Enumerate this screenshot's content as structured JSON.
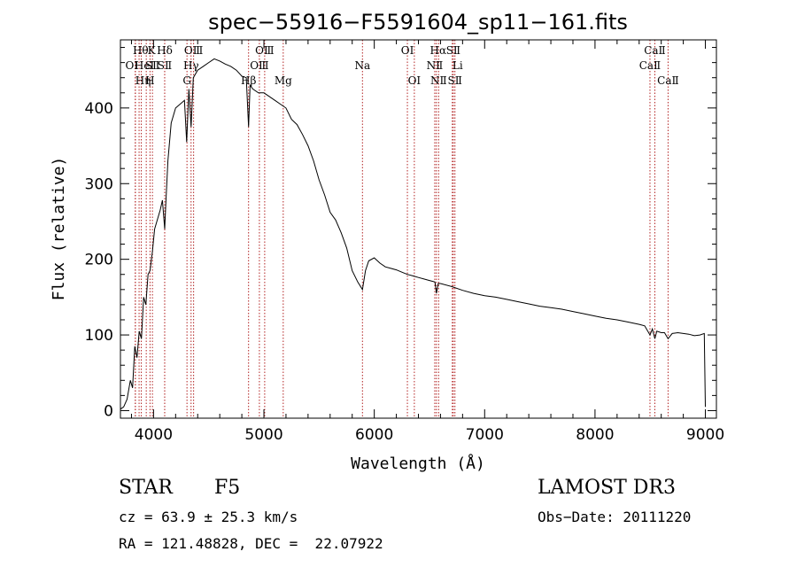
{
  "chart_data": {
    "type": "line",
    "title": "spec−55916−F5591604_sp11−161.fits",
    "xlabel": "Wavelength (Å)",
    "ylabel": "Flux (relative)",
    "xlim": [
      3700,
      9100
    ],
    "ylim": [
      -10,
      490
    ],
    "x_ticks": [
      4000,
      5000,
      6000,
      7000,
      8000,
      9000
    ],
    "y_ticks": [
      0,
      100,
      200,
      300,
      400
    ],
    "colors": {
      "spectrum": "#000000",
      "lines": "#b22222",
      "axes": "#000000"
    },
    "series": [
      {
        "name": "spectrum",
        "x": [
          3700,
          3730,
          3760,
          3790,
          3810,
          3830,
          3850,
          3870,
          3890,
          3910,
          3930,
          3950,
          3968,
          3990,
          4010,
          4030,
          4060,
          4080,
          4101,
          4110,
          4130,
          4160,
          4200,
          4240,
          4280,
          4300,
          4320,
          4340,
          4360,
          4400,
          4450,
          4500,
          4550,
          4600,
          4650,
          4700,
          4750,
          4800,
          4840,
          4861,
          4875,
          4900,
          4950,
          5000,
          5050,
          5100,
          5150,
          5200,
          5250,
          5300,
          5350,
          5400,
          5450,
          5500,
          5550,
          5600,
          5650,
          5700,
          5750,
          5800,
          5850,
          5893,
          5920,
          5950,
          6000,
          6050,
          6100,
          6150,
          6200,
          6250,
          6300,
          6350,
          6400,
          6450,
          6500,
          6550,
          6563,
          6580,
          6600,
          6700,
          6800,
          6900,
          7000,
          7100,
          7200,
          7300,
          7400,
          7500,
          7600,
          7700,
          7800,
          7900,
          8000,
          8100,
          8200,
          8300,
          8400,
          8450,
          8498,
          8520,
          8542,
          8560,
          8600,
          8630,
          8662,
          8700,
          8750,
          8800,
          8850,
          8900,
          8950,
          8990,
          9000
        ],
        "y": [
          2,
          5,
          15,
          40,
          30,
          85,
          70,
          105,
          95,
          150,
          140,
          180,
          185,
          210,
          240,
          250,
          265,
          278,
          240,
          270,
          330,
          380,
          400,
          405,
          410,
          355,
          425,
          375,
          440,
          450,
          455,
          460,
          465,
          462,
          458,
          455,
          450,
          442,
          440,
          375,
          430,
          425,
          420,
          420,
          415,
          410,
          405,
          400,
          385,
          378,
          365,
          350,
          330,
          305,
          285,
          262,
          252,
          235,
          215,
          185,
          170,
          160,
          185,
          198,
          202,
          195,
          190,
          188,
          186,
          183,
          180,
          178,
          176,
          174,
          172,
          170,
          155,
          168,
          168,
          164,
          159,
          155,
          152,
          150,
          147,
          144,
          141,
          138,
          136,
          134,
          131,
          128,
          125,
          122,
          120,
          117,
          114,
          112,
          100,
          108,
          95,
          105,
          103,
          103,
          95,
          102,
          103,
          102,
          101,
          99,
          100,
          102,
          5
        ]
      }
    ],
    "spectral_lines": [
      {
        "x": 3835,
        "label": "OⅠ",
        "row": 1,
        "dx": -4
      },
      {
        "x": 3835,
        "label": "Hθ",
        "row": 0,
        "dx": 6
      },
      {
        "x": 3889,
        "label": "Hη",
        "row": 2,
        "dx": 2
      },
      {
        "x": 3869,
        "label": "HeⅠ",
        "row": 1,
        "dx": 6
      },
      {
        "x": 3934,
        "label": "K",
        "row": 0,
        "dx": 6
      },
      {
        "x": 3968,
        "label": "H",
        "row": 2,
        "dx": 0
      },
      {
        "x": 3990,
        "label": "SⅡ",
        "row": 1,
        "dx": 0
      },
      {
        "x": 4101,
        "label": "Hδ",
        "row": 0,
        "dx": 0
      },
      {
        "x": 4101,
        "label": "SⅡ",
        "row": 1,
        "dx": 0
      },
      {
        "x": 4340,
        "label": "Hγ",
        "row": 1,
        "dx": 0
      },
      {
        "x": 4363,
        "label": "OⅢ",
        "row": 0,
        "dx": 0
      },
      {
        "x": 4303,
        "label": "G",
        "row": 2,
        "dx": 0
      },
      {
        "x": 4861,
        "label": "Hβ",
        "row": 2,
        "dx": 0
      },
      {
        "x": 4959,
        "label": "OⅢ",
        "row": 1,
        "dx": 0
      },
      {
        "x": 5007,
        "label": "OⅢ",
        "row": 0,
        "dx": 0
      },
      {
        "x": 5175,
        "label": "Mg",
        "row": 2,
        "dx": 0
      },
      {
        "x": 5893,
        "label": "Na",
        "row": 1,
        "dx": 0
      },
      {
        "x": 6300,
        "label": "OⅠ",
        "row": 0,
        "dx": 0
      },
      {
        "x": 6363,
        "label": "OⅠ",
        "row": 2,
        "dx": 0
      },
      {
        "x": 6548,
        "label": "NⅡ",
        "row": 1,
        "dx": 0
      },
      {
        "x": 6563,
        "label": "Hα",
        "row": 0,
        "dx": 2
      },
      {
        "x": 6583,
        "label": "NⅡ",
        "row": 2,
        "dx": 0
      },
      {
        "x": 6707,
        "label": "Li",
        "row": 1,
        "dx": 6
      },
      {
        "x": 6716,
        "label": "SⅡ",
        "row": 0,
        "dx": 0
      },
      {
        "x": 6731,
        "label": "SⅡ",
        "row": 2,
        "dx": 0
      },
      {
        "x": 8498,
        "label": "CaⅡ",
        "row": 1,
        "dx": 0
      },
      {
        "x": 8542,
        "label": "CaⅡ",
        "row": 0,
        "dx": 0
      },
      {
        "x": 8662,
        "label": "CaⅡ",
        "row": 2,
        "dx": 0
      }
    ]
  },
  "info": {
    "object_class": "STAR",
    "subclass": "F5",
    "survey": "LAMOST DR3",
    "redshift_line": "cz = 63.9 ± 25.3 km/s",
    "obs_date_line": "Obs−Date: 20111220",
    "coords_line": "RA = 121.48828, DEC =  22.07922"
  }
}
